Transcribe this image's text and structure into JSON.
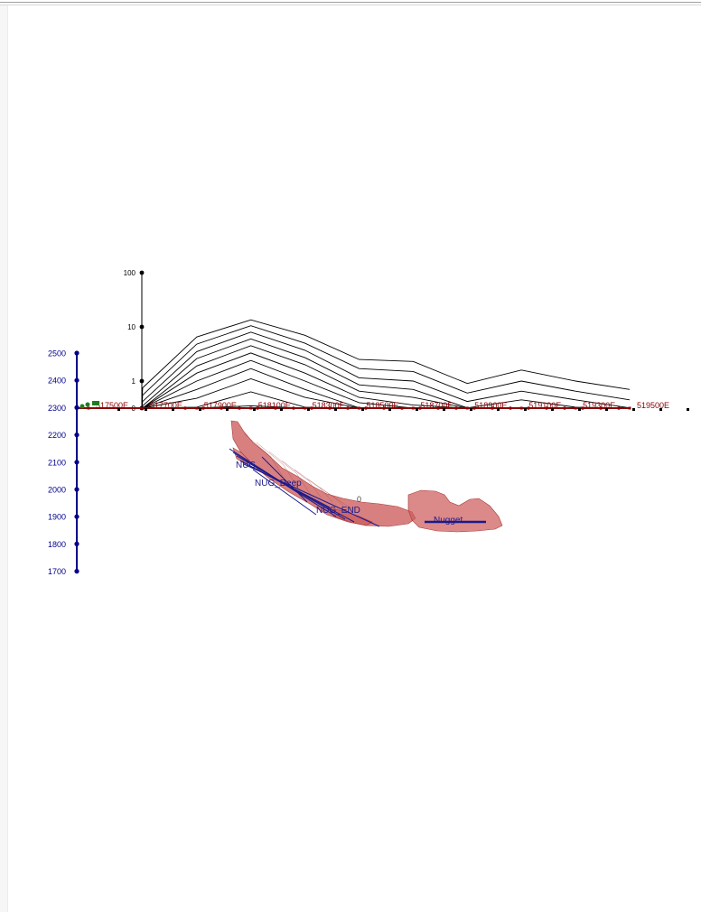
{
  "colors": {
    "elevation_axis": "#00008b",
    "easting_axis": "#8b0000",
    "log_axis": "#000000",
    "profile_lines": "#000000",
    "orebody_fill": "#cd5c5c",
    "orebody_edge": "#a83a3a",
    "drillholes": "#1a1a8c",
    "collar_marker": "#1e7d1e"
  },
  "elevation_axis": {
    "ticks": [
      "2500",
      "2400",
      "2300",
      "2200",
      "2100",
      "2000",
      "1900",
      "1800",
      "1700"
    ]
  },
  "log_axis": {
    "ticks": [
      "100",
      "10",
      "1",
      "0"
    ]
  },
  "easting_axis": {
    "ticks": [
      "517500E",
      "517700E",
      "517900E",
      "518100E",
      "518300E",
      "518500E",
      "518700E",
      "518900E",
      "519100E",
      "519300E",
      "519500E"
    ]
  },
  "annotations": {
    "hole_a": "NUG",
    "hole_b": "NUG_Deep",
    "hole_c": "NUG_END",
    "hole_d": "Nugget",
    "zero_marker": "0"
  },
  "chart_data": {
    "type": "line",
    "x": [
      517500,
      517700,
      517900,
      518100,
      518300,
      518500,
      518700,
      518900,
      519100,
      519300,
      519500
    ],
    "y_scale": "log",
    "yticks": [
      0.1,
      1,
      10,
      100
    ],
    "series": [
      {
        "values": [
          0.12,
          0.12,
          0.16,
          0.18,
          0.15,
          0.13,
          0.12,
          0.12,
          0.12,
          0.11,
          0.11
        ]
      },
      {
        "values": [
          0.13,
          0.14,
          0.22,
          0.35,
          0.22,
          0.16,
          0.13,
          0.12,
          0.12,
          0.12,
          0.12
        ]
      },
      {
        "values": [
          0.14,
          0.16,
          0.33,
          0.63,
          0.33,
          0.2,
          0.15,
          0.13,
          0.13,
          0.13,
          0.12
        ]
      },
      {
        "values": [
          0.15,
          0.18,
          0.48,
          1.1,
          0.5,
          0.25,
          0.18,
          0.14,
          0.14,
          0.14,
          0.13
        ]
      },
      {
        "values": [
          0.16,
          0.2,
          0.7,
          1.7,
          0.7,
          0.32,
          0.22,
          0.15,
          0.16,
          0.15,
          0.14
        ]
      },
      {
        "values": [
          0.17,
          0.23,
          1.0,
          2.4,
          1.0,
          0.4,
          0.28,
          0.17,
          0.19,
          0.17,
          0.15
        ]
      },
      {
        "values": [
          0.18,
          0.26,
          1.4,
          3.3,
          1.4,
          0.5,
          0.36,
          0.2,
          0.24,
          0.2,
          0.17
        ]
      },
      {
        "values": [
          0.19,
          0.3,
          1.9,
          4.5,
          2.0,
          0.65,
          0.5,
          0.25,
          0.32,
          0.25,
          0.2
        ]
      },
      {
        "values": [
          0.2,
          0.35,
          2.6,
          6.0,
          2.7,
          0.85,
          0.7,
          0.32,
          0.45,
          0.33,
          0.25
        ]
      },
      {
        "values": [
          0.22,
          0.42,
          3.5,
          8.0,
          3.7,
          1.15,
          1.0,
          0.42,
          0.65,
          0.45,
          0.32
        ]
      },
      {
        "values": [
          0.24,
          0.55,
          4.8,
          10.5,
          5.0,
          1.7,
          1.5,
          0.6,
          1.0,
          0.65,
          0.45
        ]
      },
      {
        "values": [
          0.26,
          0.75,
          6.5,
          13.5,
          7.0,
          2.5,
          2.3,
          0.9,
          1.6,
          1.0,
          0.7
        ]
      }
    ]
  }
}
